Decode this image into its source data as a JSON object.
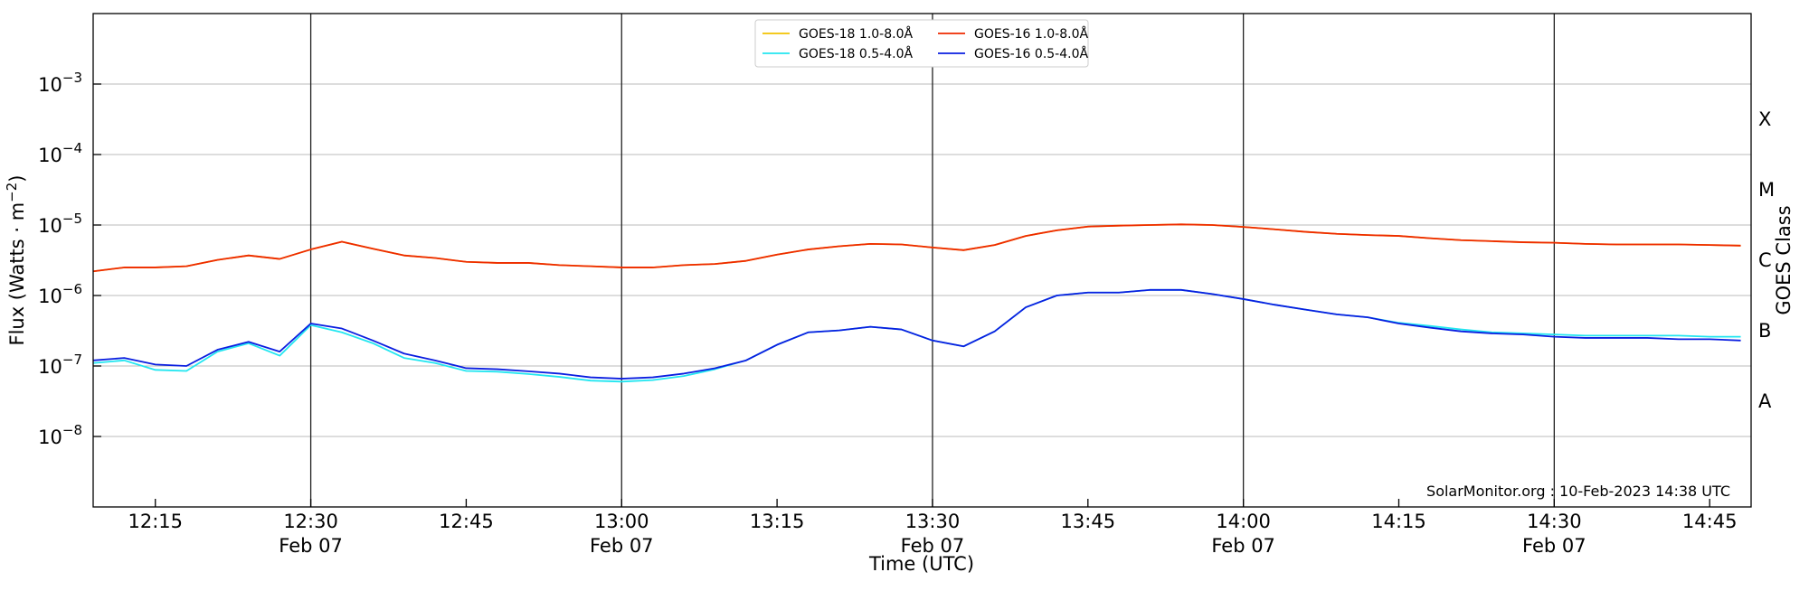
{
  "chart_data": {
    "type": "line",
    "log_scale_y": true,
    "grid": "y",
    "ylabel": {
      "text": "Flux (Watts · m",
      "exponent": "−2",
      "suffix": ")"
    },
    "y2label": "GOES Class",
    "xlabel": "Time (UTC)",
    "annotation": "SolarMonitor.org : 10-Feb-2023 14:38 UTC",
    "legend": "upper center",
    "xlim": [
      "12:09",
      "14:49"
    ],
    "xticks": [
      "12:15",
      "12:30",
      "12:45",
      "13:00",
      "13:15",
      "13:30",
      "13:45",
      "14:00",
      "14:15",
      "14:30",
      "14:45"
    ],
    "xtick_sublabels": [
      null,
      "Feb 07",
      null,
      "Feb 07",
      null,
      "Feb 07",
      null,
      "Feb 07",
      null,
      "Feb 07",
      null
    ],
    "vlines": [
      "12:30",
      "13:00",
      "13:30",
      "14:00",
      "14:30"
    ],
    "ylim": [
      1e-09,
      0.01
    ],
    "yticks": [
      {
        "value": 1e-08,
        "label": "10",
        "exponent": "−8"
      },
      {
        "value": 1e-07,
        "label": "10",
        "exponent": "−7"
      },
      {
        "value": 1e-06,
        "label": "10",
        "exponent": "−6"
      },
      {
        "value": 1e-05,
        "label": "10",
        "exponent": "−5"
      },
      {
        "value": 0.0001,
        "label": "10",
        "exponent": "−4"
      },
      {
        "value": 0.001,
        "label": "10",
        "exponent": "−3"
      }
    ],
    "y2ticks": [
      {
        "value": 3.16e-08,
        "label": "A"
      },
      {
        "value": 3.16e-07,
        "label": "B"
      },
      {
        "value": 3.16e-06,
        "label": "C"
      },
      {
        "value": 3.16e-05,
        "label": "M"
      },
      {
        "value": 0.000316,
        "label": "X"
      }
    ],
    "x": [
      "12:09",
      "12:12",
      "12:15",
      "12:18",
      "12:21",
      "12:24",
      "12:27",
      "12:30",
      "12:33",
      "12:36",
      "12:39",
      "12:42",
      "12:45",
      "12:48",
      "12:51",
      "12:54",
      "12:57",
      "13:00",
      "13:03",
      "13:06",
      "13:09",
      "13:12",
      "13:15",
      "13:18",
      "13:21",
      "13:24",
      "13:27",
      "13:30",
      "13:33",
      "13:36",
      "13:39",
      "13:42",
      "13:45",
      "13:48",
      "13:51",
      "13:54",
      "13:57",
      "14:00",
      "14:03",
      "14:06",
      "14:09",
      "14:12",
      "14:15",
      "14:18",
      "14:21",
      "14:24",
      "14:27",
      "14:30",
      "14:33",
      "14:36",
      "14:39",
      "14:42",
      "14:45",
      "14:48"
    ],
    "series": [
      {
        "name": "GOES-18 1.0-8.0Å",
        "color": "#f2c200",
        "values": [
          2.2e-06,
          2.5e-06,
          2.5e-06,
          2.6e-06,
          3.2e-06,
          3.7e-06,
          3.3e-06,
          4.5e-06,
          5.8e-06,
          4.6e-06,
          3.7e-06,
          3.4e-06,
          3e-06,
          2.9e-06,
          2.9e-06,
          2.7e-06,
          2.6e-06,
          2.5e-06,
          2.5e-06,
          2.7e-06,
          2.8e-06,
          3.1e-06,
          3.8e-06,
          4.5e-06,
          5e-06,
          5.4e-06,
          5.3e-06,
          4.8e-06,
          4.4e-06,
          5.2e-06,
          7e-06,
          8.4e-06,
          9.5e-06,
          9.8e-06,
          1e-05,
          1.02e-05,
          1e-05,
          9.4e-06,
          8.7e-06,
          8e-06,
          7.5e-06,
          7.2e-06,
          7e-06,
          6.5e-06,
          6.1e-06,
          5.9e-06,
          5.7e-06,
          5.6e-06,
          5.4e-06,
          5.3e-06,
          5.3e-06,
          5.3e-06,
          5.2e-06,
          5.1e-06
        ]
      },
      {
        "name": "GOES-18 0.5-4.0Å",
        "color": "#22e6f0",
        "values": [
          1.1e-07,
          1.2e-07,
          8.8e-08,
          8.5e-08,
          1.6e-07,
          2.1e-07,
          1.4e-07,
          3.8e-07,
          3e-07,
          2.1e-07,
          1.3e-07,
          1.1e-07,
          8.5e-08,
          8.3e-08,
          7.7e-08,
          7e-08,
          6.2e-08,
          6e-08,
          6.3e-08,
          7.2e-08,
          9e-08,
          1.2e-07,
          2e-07,
          3e-07,
          3.2e-07,
          3.6e-07,
          3.3e-07,
          2.3e-07,
          1.9e-07,
          3.1e-07,
          6.8e-07,
          1e-06,
          1.1e-06,
          1.1e-06,
          1.2e-06,
          1.2e-06,
          1.05e-06,
          8.9e-07,
          7.4e-07,
          6.3e-07,
          5.4e-07,
          4.9e-07,
          4.1e-07,
          3.7e-07,
          3.3e-07,
          3e-07,
          2.9e-07,
          2.8e-07,
          2.7e-07,
          2.7e-07,
          2.7e-07,
          2.7e-07,
          2.6e-07,
          2.6e-07
        ]
      },
      {
        "name": "GOES-16 1.0-8.0Å",
        "color": "#ee2a00",
        "values": [
          2.2e-06,
          2.5e-06,
          2.5e-06,
          2.6e-06,
          3.2e-06,
          3.7e-06,
          3.3e-06,
          4.5e-06,
          5.8e-06,
          4.6e-06,
          3.7e-06,
          3.4e-06,
          3e-06,
          2.9e-06,
          2.9e-06,
          2.7e-06,
          2.6e-06,
          2.5e-06,
          2.5e-06,
          2.7e-06,
          2.8e-06,
          3.1e-06,
          3.8e-06,
          4.5e-06,
          5e-06,
          5.4e-06,
          5.3e-06,
          4.8e-06,
          4.4e-06,
          5.2e-06,
          7e-06,
          8.4e-06,
          9.5e-06,
          9.8e-06,
          1e-05,
          1.02e-05,
          1e-05,
          9.4e-06,
          8.7e-06,
          8e-06,
          7.5e-06,
          7.2e-06,
          7e-06,
          6.5e-06,
          6.1e-06,
          5.9e-06,
          5.7e-06,
          5.6e-06,
          5.4e-06,
          5.3e-06,
          5.3e-06,
          5.3e-06,
          5.2e-06,
          5.1e-06
        ]
      },
      {
        "name": "GOES-16 0.5-4.0Å",
        "color": "#0a1ee0",
        "values": [
          1.2e-07,
          1.3e-07,
          1.05e-07,
          1e-07,
          1.7e-07,
          2.2e-07,
          1.6e-07,
          4e-07,
          3.4e-07,
          2.3e-07,
          1.5e-07,
          1.2e-07,
          9.3e-08,
          9e-08,
          8.4e-08,
          7.8e-08,
          6.9e-08,
          6.6e-08,
          6.9e-08,
          7.8e-08,
          9.3e-08,
          1.2e-07,
          2e-07,
          3e-07,
          3.2e-07,
          3.6e-07,
          3.3e-07,
          2.3e-07,
          1.9e-07,
          3.1e-07,
          6.8e-07,
          1e-06,
          1.1e-06,
          1.1e-06,
          1.2e-06,
          1.2e-06,
          1.05e-06,
          8.9e-07,
          7.4e-07,
          6.3e-07,
          5.4e-07,
          4.9e-07,
          4e-07,
          3.5e-07,
          3.1e-07,
          2.9e-07,
          2.8e-07,
          2.6e-07,
          2.5e-07,
          2.5e-07,
          2.5e-07,
          2.4e-07,
          2.4e-07,
          2.3e-07
        ]
      }
    ]
  }
}
